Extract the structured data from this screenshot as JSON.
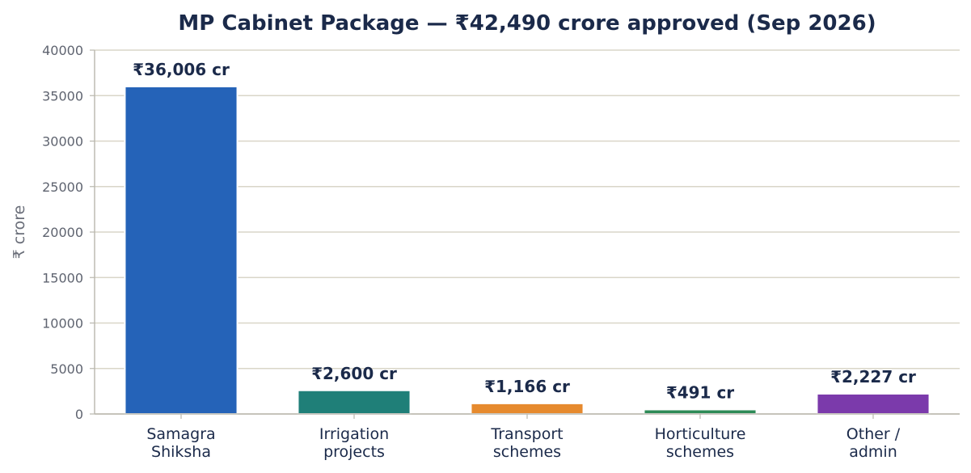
{
  "chart_data": {
    "type": "bar",
    "title": "MP Cabinet Package  —  ₹42,490 crore approved (Sep 2026)",
    "xlabel": "",
    "ylabel": "₹ crore",
    "ylim": [
      0,
      40000
    ],
    "yticks": [
      0,
      5000,
      10000,
      15000,
      20000,
      25000,
      30000,
      35000,
      40000
    ],
    "grid": true,
    "categories": [
      [
        "Samagra",
        "Shiksha"
      ],
      [
        "Irrigation",
        "projects"
      ],
      [
        "Transport",
        "schemes"
      ],
      [
        "Horticulture",
        "schemes"
      ],
      [
        "Other /",
        "admin"
      ]
    ],
    "values": [
      36006,
      2600,
      1166,
      491,
      2227
    ],
    "data_labels": [
      "₹36,006 cr",
      "₹2,600 cr",
      "₹1,166 cr",
      "₹491 cr",
      "₹2,227 cr"
    ],
    "colors": [
      "#2563b8",
      "#1f7f78",
      "#e68a2e",
      "#2e8b57",
      "#7b3aab"
    ]
  }
}
